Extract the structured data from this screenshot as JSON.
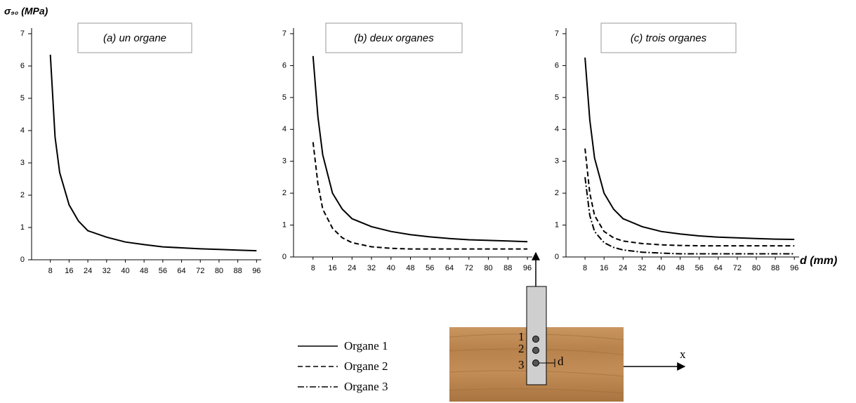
{
  "chart_data": [
    {
      "type": "line",
      "title": "(a) un organe",
      "y_label": "σ₉₀ (MPa)",
      "x": [
        8,
        10,
        12,
        16,
        20,
        24,
        32,
        40,
        48,
        56,
        64,
        72,
        80,
        88,
        96
      ],
      "series": [
        {
          "color": "#000000",
          "line_style": "solid",
          "values": [
            6.35,
            3.8,
            2.7,
            1.7,
            1.2,
            0.9,
            0.7,
            0.55,
            0.47,
            0.4,
            0.37,
            0.34,
            0.32,
            0.3,
            0.28
          ]
        }
      ],
      "xlim": [
        0,
        98
      ],
      "ylim": [
        0,
        7
      ],
      "xticks": [
        8,
        16,
        24,
        32,
        40,
        48,
        56,
        64,
        72,
        80,
        88,
        96
      ],
      "yticks": [
        0,
        1,
        2,
        3,
        4,
        5,
        6,
        7
      ]
    },
    {
      "type": "line",
      "title": "(b) deux organes",
      "x": [
        8,
        10,
        12,
        16,
        20,
        24,
        32,
        40,
        48,
        56,
        64,
        72,
        80,
        88,
        96
      ],
      "series": [
        {
          "color": "#000000",
          "line_style": "solid",
          "values": [
            6.3,
            4.4,
            3.2,
            2.0,
            1.5,
            1.2,
            0.95,
            0.8,
            0.7,
            0.63,
            0.58,
            0.54,
            0.52,
            0.5,
            0.48
          ]
        },
        {
          "color": "#000000",
          "line_style": "dashed",
          "values": [
            3.6,
            2.3,
            1.5,
            0.9,
            0.6,
            0.45,
            0.32,
            0.27,
            0.25,
            0.25,
            0.25,
            0.25,
            0.25,
            0.25,
            0.25
          ]
        }
      ],
      "xlim": [
        0,
        98
      ],
      "ylim": [
        0,
        7
      ],
      "xticks": [
        8,
        16,
        24,
        32,
        40,
        48,
        56,
        64,
        72,
        80,
        88,
        96
      ],
      "yticks": [
        0,
        1,
        2,
        3,
        4,
        5,
        6,
        7
      ]
    },
    {
      "type": "line",
      "title": "(c) trois organes",
      "x_label": "d (mm)",
      "x": [
        8,
        10,
        12,
        16,
        20,
        24,
        32,
        40,
        48,
        56,
        64,
        72,
        80,
        88,
        96
      ],
      "series": [
        {
          "name": "Organe 1",
          "color": "#000000",
          "line_style": "solid",
          "values": [
            6.25,
            4.3,
            3.1,
            2.0,
            1.5,
            1.2,
            0.95,
            0.8,
            0.72,
            0.66,
            0.62,
            0.6,
            0.58,
            0.56,
            0.55
          ]
        },
        {
          "name": "Organe 2",
          "color": "#000000",
          "line_style": "dashed",
          "values": [
            3.4,
            2.0,
            1.3,
            0.8,
            0.6,
            0.5,
            0.42,
            0.38,
            0.36,
            0.35,
            0.35,
            0.35,
            0.35,
            0.35,
            0.35
          ]
        },
        {
          "name": "Organe 3",
          "color": "#000000",
          "line_style": "dashdot",
          "values": [
            2.5,
            1.3,
            0.8,
            0.45,
            0.3,
            0.22,
            0.15,
            0.12,
            0.1,
            0.1,
            0.1,
            0.1,
            0.1,
            0.1,
            0.1
          ]
        }
      ],
      "xlim": [
        0,
        98
      ],
      "ylim": [
        0,
        7
      ],
      "xticks": [
        8,
        16,
        24,
        32,
        40,
        48,
        56,
        64,
        72,
        80,
        88,
        96
      ],
      "yticks": [
        0,
        1,
        2,
        3,
        4,
        5,
        6,
        7
      ]
    }
  ],
  "diagram": {
    "hole_labels": [
      "1",
      "2",
      "3"
    ],
    "distance_label": "d",
    "axis_label": "x"
  }
}
